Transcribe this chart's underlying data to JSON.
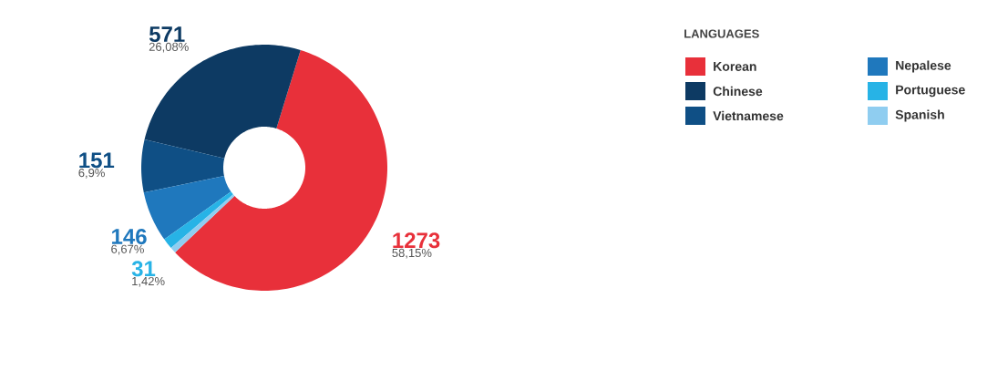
{
  "chart_data": {
    "type": "donut",
    "legend_title": "LANGUAGES",
    "legend": "top right",
    "categories": [
      "Korean",
      "Chinese",
      "Vietnamese",
      "Nepalese",
      "Portuguese",
      "Spanish"
    ],
    "values": [
      1273,
      571,
      151,
      146,
      31,
      17
    ],
    "colors": [
      "#e8303a",
      "#0d3a63",
      "#0f4f85",
      "#1f78bd",
      "#27b3e6",
      "#8fcdf0"
    ],
    "value_labels": [
      "1273",
      "571",
      "151",
      "146",
      "31",
      null
    ],
    "annotations": [
      {
        "text": "58,15%",
        "x": "Korean"
      },
      {
        "text": "26,08%",
        "x": "Chinese"
      },
      {
        "text": "6,9%",
        "x": "Vietnamese"
      },
      {
        "text": "6,67%",
        "x": "Nepalese"
      },
      {
        "text": "1,42%",
        "x": "Portuguese"
      }
    ]
  }
}
